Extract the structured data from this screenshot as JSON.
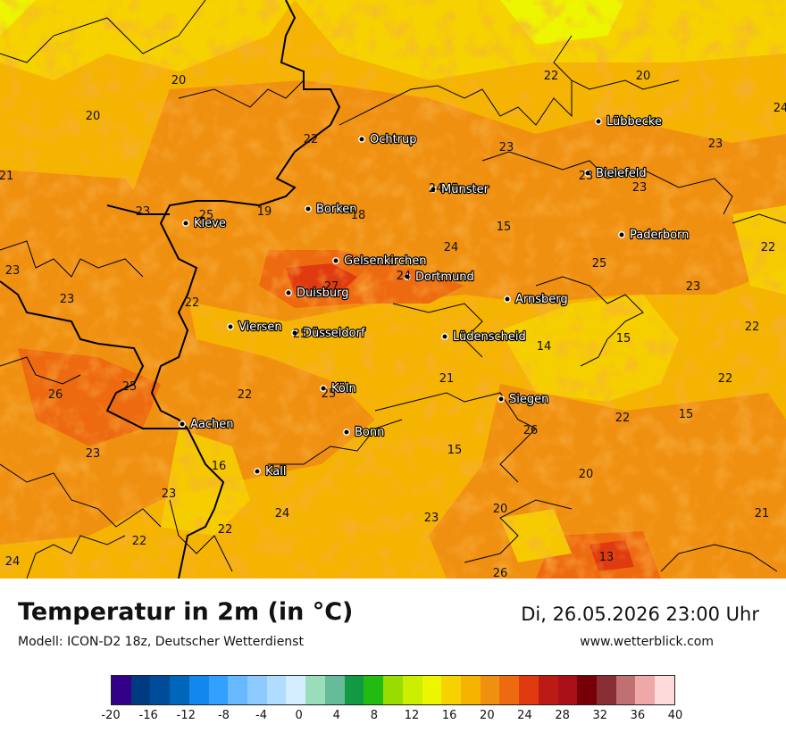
{
  "header": {
    "title": "Temperatur in 2m (in °C)",
    "model": "Modell: ICON-D2 18z, Deutscher Wetterdienst",
    "datetime": "Di, 26.05.2026 23:00 Uhr",
    "website": "www.wetterblick.com"
  },
  "map": {
    "cities": [
      "Lübbecke",
      "Ochtrup",
      "Bielefeld",
      "Münster",
      "Kleve",
      "Borken",
      "Paderborn",
      "Gelsenkirchen",
      "Dortmund",
      "Duisburg",
      "Arnsberg",
      "Viersen",
      "Düsseldorf",
      "Lüdenscheid",
      "Köln",
      "Siegen",
      "Aachen",
      "Bonn",
      "Kall"
    ],
    "values": [
      "22",
      "20",
      "24",
      "20",
      "20",
      "22",
      "23",
      "23",
      "21",
      "24",
      "23",
      "23",
      "23",
      "18",
      "25",
      "19",
      "15",
      "24",
      "22",
      "23",
      "24",
      "25",
      "27",
      "23",
      "22",
      "23",
      "14",
      "15",
      "22",
      "25",
      "25",
      "21",
      "22",
      "25",
      "26",
      "22",
      "22",
      "15",
      "26",
      "23",
      "15",
      "16",
      "23",
      "20",
      "24",
      "23",
      "20",
      "22",
      "21",
      "22",
      "24",
      "26",
      "13"
    ]
  },
  "legend": {
    "unit": "°C",
    "colors": [
      "#330088",
      "#003a80",
      "#004c99",
      "#0066bb",
      "#1188ee",
      "#33a0ff",
      "#66b8ff",
      "#8ccaff",
      "#b0dcff",
      "#d4ecff",
      "#99ddbb",
      "#66bb99",
      "#119944",
      "#22bb11",
      "#99dd00",
      "#ccee00",
      "#eef500",
      "#f6d200",
      "#f5b400",
      "#f09010",
      "#ee6a10",
      "#e03b10",
      "#bb1a15",
      "#aa1018",
      "#770008",
      "#8a2e35",
      "#c07070",
      "#eea8a8",
      "#ffdada"
    ],
    "ticks": [
      "-20",
      "-16",
      "-12",
      "-8",
      "-4",
      "0",
      "4",
      "8",
      "12",
      "16",
      "20",
      "24",
      "28",
      "32",
      "36",
      "40"
    ]
  }
}
